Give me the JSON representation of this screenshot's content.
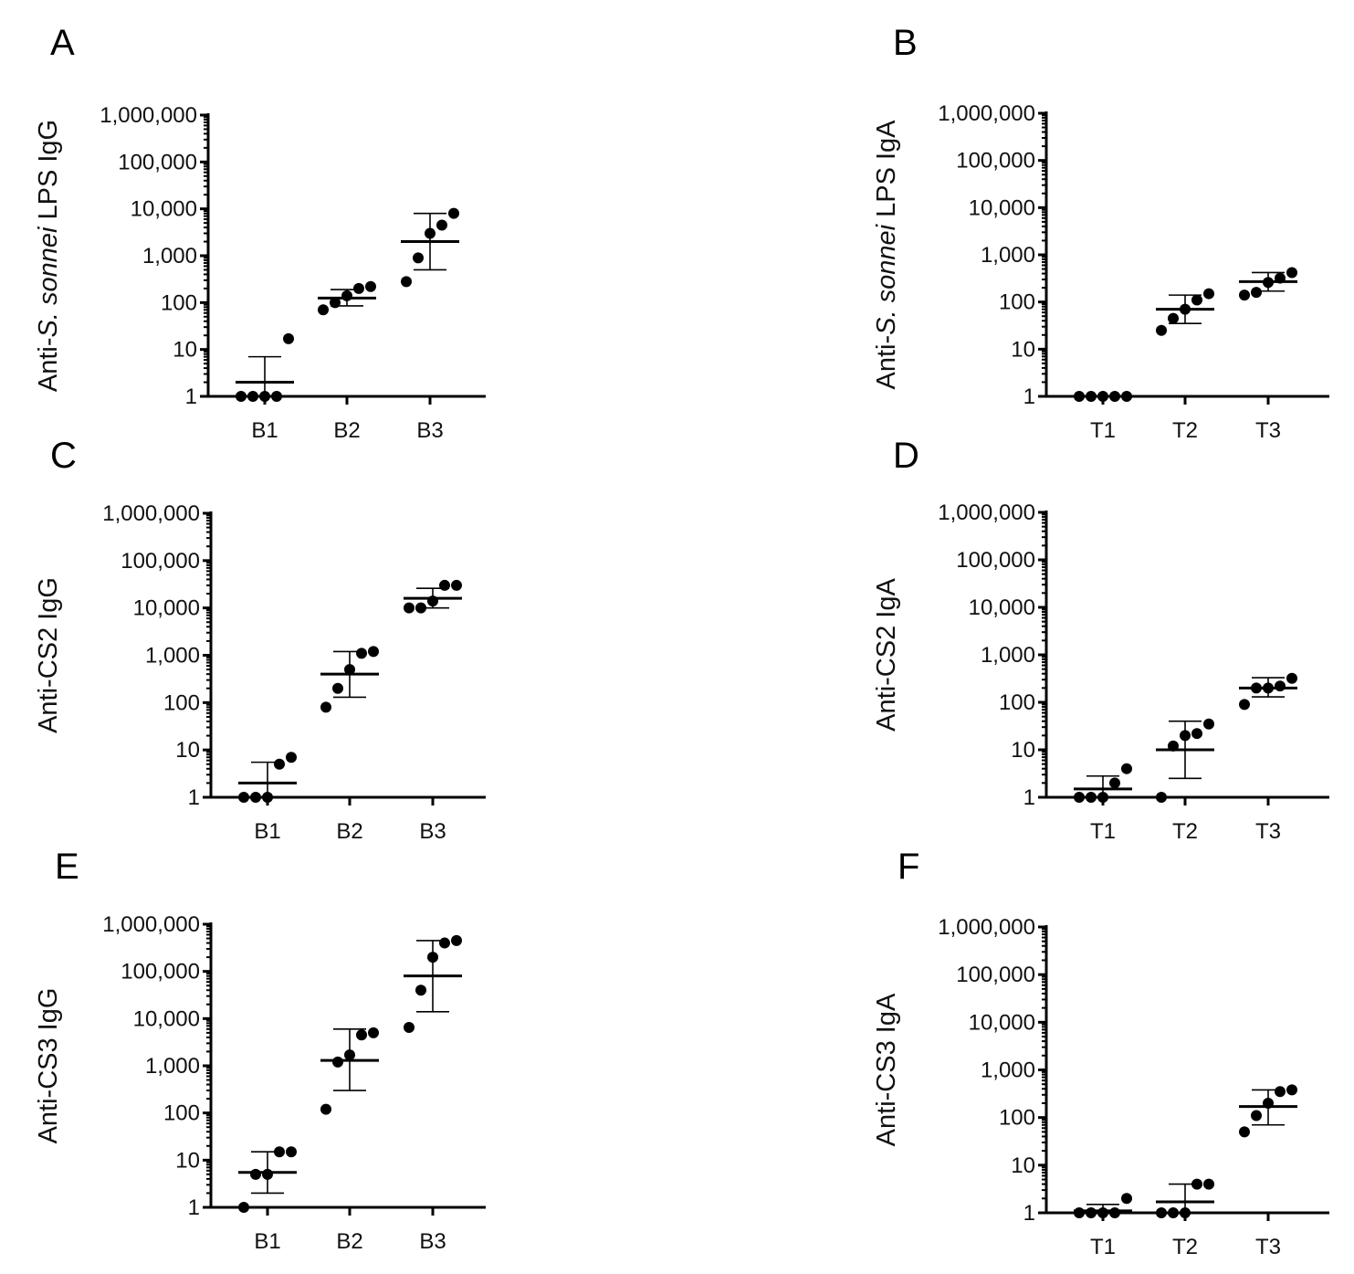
{
  "chart_data": [
    {
      "panel": "A",
      "type": "scatter",
      "ylabel": {
        "pre": "Anti-",
        "ital": "S. sonnei",
        "post": " LPS IgG"
      },
      "yscale": "log",
      "ylim": [
        1,
        1000000
      ],
      "ticks": [
        1,
        10,
        100,
        1000,
        10000,
        100000,
        1000000
      ],
      "tick_labels": [
        "1",
        "10",
        "100",
        "1,000",
        "10,000",
        "100,000",
        "1,000,000"
      ],
      "categories": [
        "B1",
        "B2",
        "B3"
      ],
      "groups": [
        {
          "name": "B1",
          "mean": 2,
          "err": [
            1,
            7
          ],
          "points": [
            1,
            1,
            1,
            1,
            17
          ]
        },
        {
          "name": "B2",
          "mean": 125,
          "err": [
            85,
            190
          ],
          "points": [
            70,
            100,
            140,
            200,
            220
          ]
        },
        {
          "name": "B3",
          "mean": 2000,
          "err": [
            500,
            8000
          ],
          "points": [
            280,
            900,
            3000,
            4500,
            8000
          ]
        }
      ]
    },
    {
      "panel": "B",
      "type": "scatter",
      "ylabel": {
        "pre": "Anti-",
        "ital": "S. sonnei",
        "post": " LPS IgA"
      },
      "yscale": "log",
      "ylim": [
        1,
        1000000
      ],
      "ticks": [
        1,
        10,
        100,
        1000,
        10000,
        100000,
        1000000
      ],
      "tick_labels": [
        "1",
        "10",
        "100",
        "1,000",
        "10,000",
        "100,000",
        "1,000,000"
      ],
      "categories": [
        "T1",
        "T2",
        "T3"
      ],
      "groups": [
        {
          "name": "T1",
          "mean": 1,
          "err": [
            1,
            1
          ],
          "points": [
            1,
            1,
            1,
            1,
            1
          ]
        },
        {
          "name": "T2",
          "mean": 70,
          "err": [
            35,
            140
          ],
          "points": [
            25,
            45,
            70,
            110,
            150
          ]
        },
        {
          "name": "T3",
          "mean": 270,
          "err": [
            170,
            420
          ],
          "points": [
            140,
            160,
            260,
            320,
            420
          ]
        }
      ]
    },
    {
      "panel": "C",
      "type": "scatter",
      "ylabel": {
        "pre": "Anti-CS2 IgG",
        "ital": "",
        "post": ""
      },
      "yscale": "log",
      "ylim": [
        1,
        1000000
      ],
      "ticks": [
        1,
        10,
        100,
        1000,
        10000,
        100000,
        1000000
      ],
      "tick_labels": [
        "1",
        "10",
        "100",
        "1,000",
        "10,000",
        "100,000",
        "1,000,000"
      ],
      "categories": [
        "B1",
        "B2",
        "B3"
      ],
      "groups": [
        {
          "name": "B1",
          "mean": 2,
          "err": [
            1,
            5.5
          ],
          "points": [
            1,
            1,
            1,
            5,
            7
          ]
        },
        {
          "name": "B2",
          "mean": 400,
          "err": [
            130,
            1200
          ],
          "points": [
            80,
            200,
            500,
            1100,
            1200
          ]
        },
        {
          "name": "B3",
          "mean": 16000,
          "err": [
            10000,
            26000
          ],
          "points": [
            10000,
            10000,
            14000,
            30000,
            30000
          ]
        }
      ]
    },
    {
      "panel": "D",
      "type": "scatter",
      "ylabel": {
        "pre": "Anti-CS2 IgA",
        "ital": "",
        "post": ""
      },
      "yscale": "log",
      "ylim": [
        1,
        1000000
      ],
      "ticks": [
        1,
        10,
        100,
        1000,
        10000,
        100000,
        1000000
      ],
      "tick_labels": [
        "1",
        "10",
        "100",
        "1,000",
        "10,000",
        "100,000",
        "1,000,000"
      ],
      "categories": [
        "T1",
        "T2",
        "T3"
      ],
      "groups": [
        {
          "name": "T1",
          "mean": 1.5,
          "err": [
            1,
            2.8
          ],
          "points": [
            1,
            1,
            1,
            2,
            4
          ]
        },
        {
          "name": "T2",
          "mean": 10,
          "err": [
            2.5,
            40
          ],
          "points": [
            1,
            12,
            20,
            22,
            35
          ]
        },
        {
          "name": "T3",
          "mean": 200,
          "err": [
            130,
            330
          ],
          "points": [
            90,
            200,
            200,
            220,
            320
          ]
        }
      ]
    },
    {
      "panel": "E",
      "type": "scatter",
      "ylabel": {
        "pre": "Anti-CS3 IgG",
        "ital": "",
        "post": ""
      },
      "yscale": "log",
      "ylim": [
        1,
        1000000
      ],
      "ticks": [
        1,
        10,
        100,
        1000,
        10000,
        100000,
        1000000
      ],
      "tick_labels": [
        "1",
        "10",
        "100",
        "1,000",
        "10,000",
        "100,000",
        "1,000,000"
      ],
      "categories": [
        "B1",
        "B2",
        "B3"
      ],
      "groups": [
        {
          "name": "B1",
          "mean": 5.5,
          "err": [
            2,
            15
          ],
          "points": [
            1,
            5,
            5,
            15,
            15
          ]
        },
        {
          "name": "B2",
          "mean": 1300,
          "err": [
            300,
            6000
          ],
          "points": [
            120,
            1200,
            1700,
            4500,
            5000
          ]
        },
        {
          "name": "B3",
          "mean": 80000,
          "err": [
            14000,
            450000
          ],
          "points": [
            6500,
            40000,
            200000,
            400000,
            450000
          ]
        }
      ]
    },
    {
      "panel": "F",
      "type": "scatter",
      "ylabel": {
        "pre": "Anti-CS3 IgA",
        "ital": "",
        "post": ""
      },
      "yscale": "log",
      "ylim": [
        1,
        1000000
      ],
      "ticks": [
        1,
        10,
        100,
        1000,
        10000,
        100000,
        1000000
      ],
      "tick_labels": [
        "1",
        "10",
        "100",
        "1,000",
        "10,000",
        "100,000",
        "1,000,000"
      ],
      "categories": [
        "T1",
        "T2",
        "T3"
      ],
      "groups": [
        {
          "name": "T1",
          "mean": 1.1,
          "err": [
            1,
            1.5
          ],
          "points": [
            1,
            1,
            1,
            1,
            2
          ]
        },
        {
          "name": "T2",
          "mean": 1.7,
          "err": [
            1,
            4
          ],
          "points": [
            1,
            1,
            1,
            4,
            4
          ]
        },
        {
          "name": "T3",
          "mean": 170,
          "err": [
            70,
            380
          ],
          "points": [
            50,
            110,
            200,
            350,
            380
          ]
        }
      ]
    }
  ]
}
